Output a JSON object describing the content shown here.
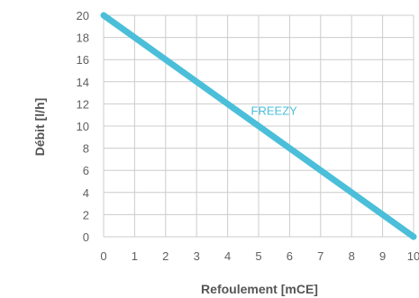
{
  "chart_data": {
    "type": "line",
    "xlabel": "Refoulement [mCE]",
    "ylabel": "Débit [l/h]",
    "xlim": [
      0,
      10
    ],
    "ylim": [
      0,
      20
    ],
    "grid": true,
    "x_ticks": [
      0,
      1,
      2,
      3,
      4,
      5,
      6,
      7,
      8,
      9,
      10
    ],
    "y_ticks": [
      0,
      2,
      4,
      6,
      8,
      10,
      12,
      14,
      16,
      18,
      20
    ],
    "x_tick_labels": [
      "0",
      "1",
      "2",
      "3",
      "4",
      "5",
      "6",
      "7",
      "8",
      "9",
      "10"
    ],
    "y_tick_labels": [
      "0",
      "2",
      "4",
      "6",
      "8",
      "10",
      "12",
      "14",
      "16",
      "18",
      "20"
    ],
    "series": [
      {
        "name": "FREEZY",
        "color": "#4bbfd9",
        "x": [
          0,
          10
        ],
        "y": [
          20,
          0
        ]
      }
    ],
    "annotations": [
      {
        "text": "FREEZY",
        "x": 5.5,
        "y": 11.0,
        "color": "#4bbfd9"
      }
    ],
    "colors": {
      "grid": "#cccccc",
      "axis_text": "#606060",
      "axis_title": "#555555"
    }
  }
}
